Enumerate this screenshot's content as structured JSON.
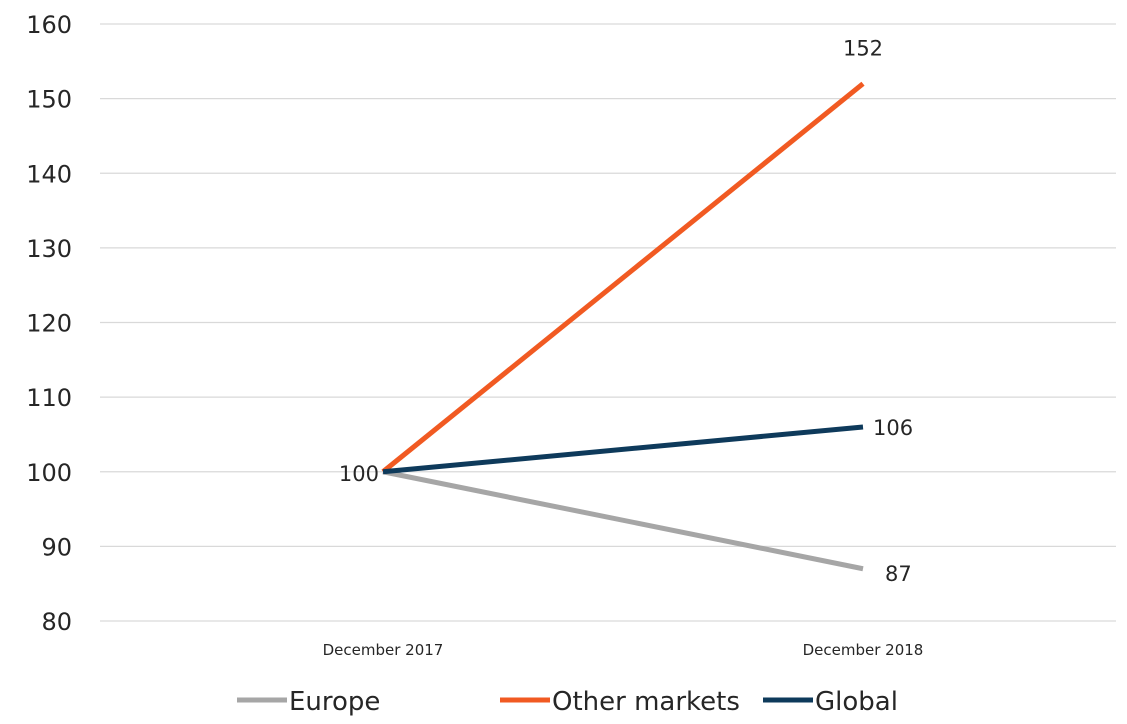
{
  "chart_data": {
    "type": "line",
    "title": "",
    "xlabel": "",
    "ylabel": "",
    "categories": [
      "December 2017",
      "December 2018"
    ],
    "ylim": [
      80,
      160
    ],
    "yticks": [
      80,
      90,
      100,
      110,
      120,
      130,
      140,
      150,
      160
    ],
    "grid": true,
    "legend_position": "bottom",
    "series": [
      {
        "name": "Europe",
        "color": "#a6a6a6",
        "values": [
          100,
          87
        ],
        "data_labels": [
          "100",
          "87"
        ]
      },
      {
        "name": "Other markets",
        "color": "#f15a22",
        "values": [
          100,
          152
        ],
        "data_labels": [
          "",
          "152"
        ]
      },
      {
        "name": "Global",
        "color": "#0e3a5b",
        "values": [
          100,
          106
        ],
        "data_labels": [
          "",
          "106"
        ]
      }
    ]
  }
}
